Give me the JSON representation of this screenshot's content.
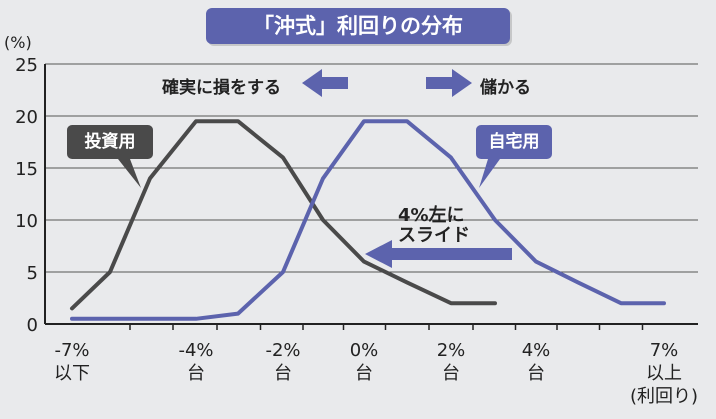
{
  "title": "「沖式」利回りの分布",
  "chart_data": {
    "type": "line",
    "ylabel": "(%)",
    "yticks": [
      0,
      5,
      10,
      15,
      20,
      25
    ],
    "ylim": [
      0,
      25
    ],
    "grid": true,
    "x_categories": [
      {
        "pos": -7,
        "label": [
          "-7%",
          "以下"
        ]
      },
      {
        "pos": -4,
        "label": [
          "-4%",
          "台"
        ]
      },
      {
        "pos": -2,
        "label": [
          "-2%",
          "台"
        ]
      },
      {
        "pos": 0,
        "label": [
          "0%",
          "台"
        ]
      },
      {
        "pos": 2,
        "label": [
          "2%",
          "台"
        ]
      },
      {
        "pos": 4,
        "label": [
          "4%",
          "台"
        ]
      },
      {
        "pos": 7,
        "label": [
          "7%",
          "以上",
          "(利回り)"
        ]
      }
    ],
    "series": [
      {
        "name": "投資用",
        "color": "#4a4a4a",
        "points": [
          [
            -7,
            1.5
          ],
          [
            -6,
            5
          ],
          [
            -5,
            14
          ],
          [
            -4,
            19.5
          ],
          [
            -3,
            19.5
          ],
          [
            -2,
            16
          ],
          [
            -1,
            10
          ],
          [
            0,
            6
          ],
          [
            1,
            4
          ],
          [
            2,
            2
          ],
          [
            3,
            2
          ]
        ]
      },
      {
        "name": "自宅用",
        "color": "#5c63ad",
        "points": [
          [
            -7,
            0.5
          ],
          [
            -5,
            0.5
          ],
          [
            -4,
            0.5
          ],
          [
            -3,
            1
          ],
          [
            -2,
            5
          ],
          [
            -1,
            14
          ],
          [
            0,
            19.5
          ],
          [
            1,
            19.5
          ],
          [
            2,
            16
          ],
          [
            3,
            10
          ],
          [
            4,
            6
          ],
          [
            5,
            4
          ],
          [
            6,
            2
          ],
          [
            7,
            2
          ]
        ]
      }
    ],
    "annotations": {
      "left_arrow_text": "確実に損をする",
      "right_arrow_text": "儲かる",
      "slide_text_1": "4%左に",
      "slide_text_2": "スライド"
    }
  },
  "colors": {
    "bg": "#e9eaec",
    "grid": "#555555",
    "accent": "#5c63ad",
    "dark": "#4a4a4a"
  }
}
